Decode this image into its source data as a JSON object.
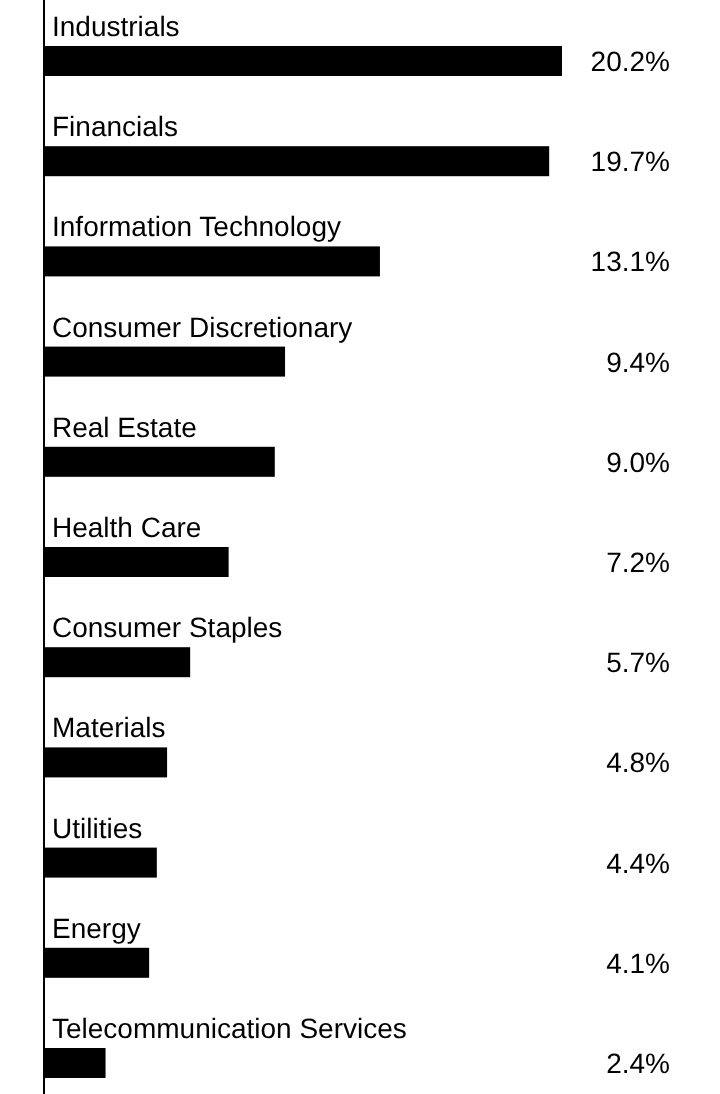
{
  "chart_data": {
    "type": "bar",
    "orientation": "horizontal",
    "categories": [
      "Industrials",
      "Financials",
      "Information Technology",
      "Consumer Discretionary",
      "Real Estate",
      "Health Care",
      "Consumer Staples",
      "Materials",
      "Utilities",
      "Energy",
      "Telecommunication Services"
    ],
    "values": [
      20.2,
      19.7,
      13.1,
      9.4,
      9.0,
      7.2,
      5.7,
      4.8,
      4.4,
      4.1,
      2.4
    ],
    "value_labels": [
      "20.2%",
      "19.7%",
      "13.1%",
      "9.4%",
      "9.0%",
      "7.2%",
      "5.7%",
      "4.8%",
      "4.4%",
      "4.1%",
      "2.4%"
    ],
    "color": "#000000"
  }
}
